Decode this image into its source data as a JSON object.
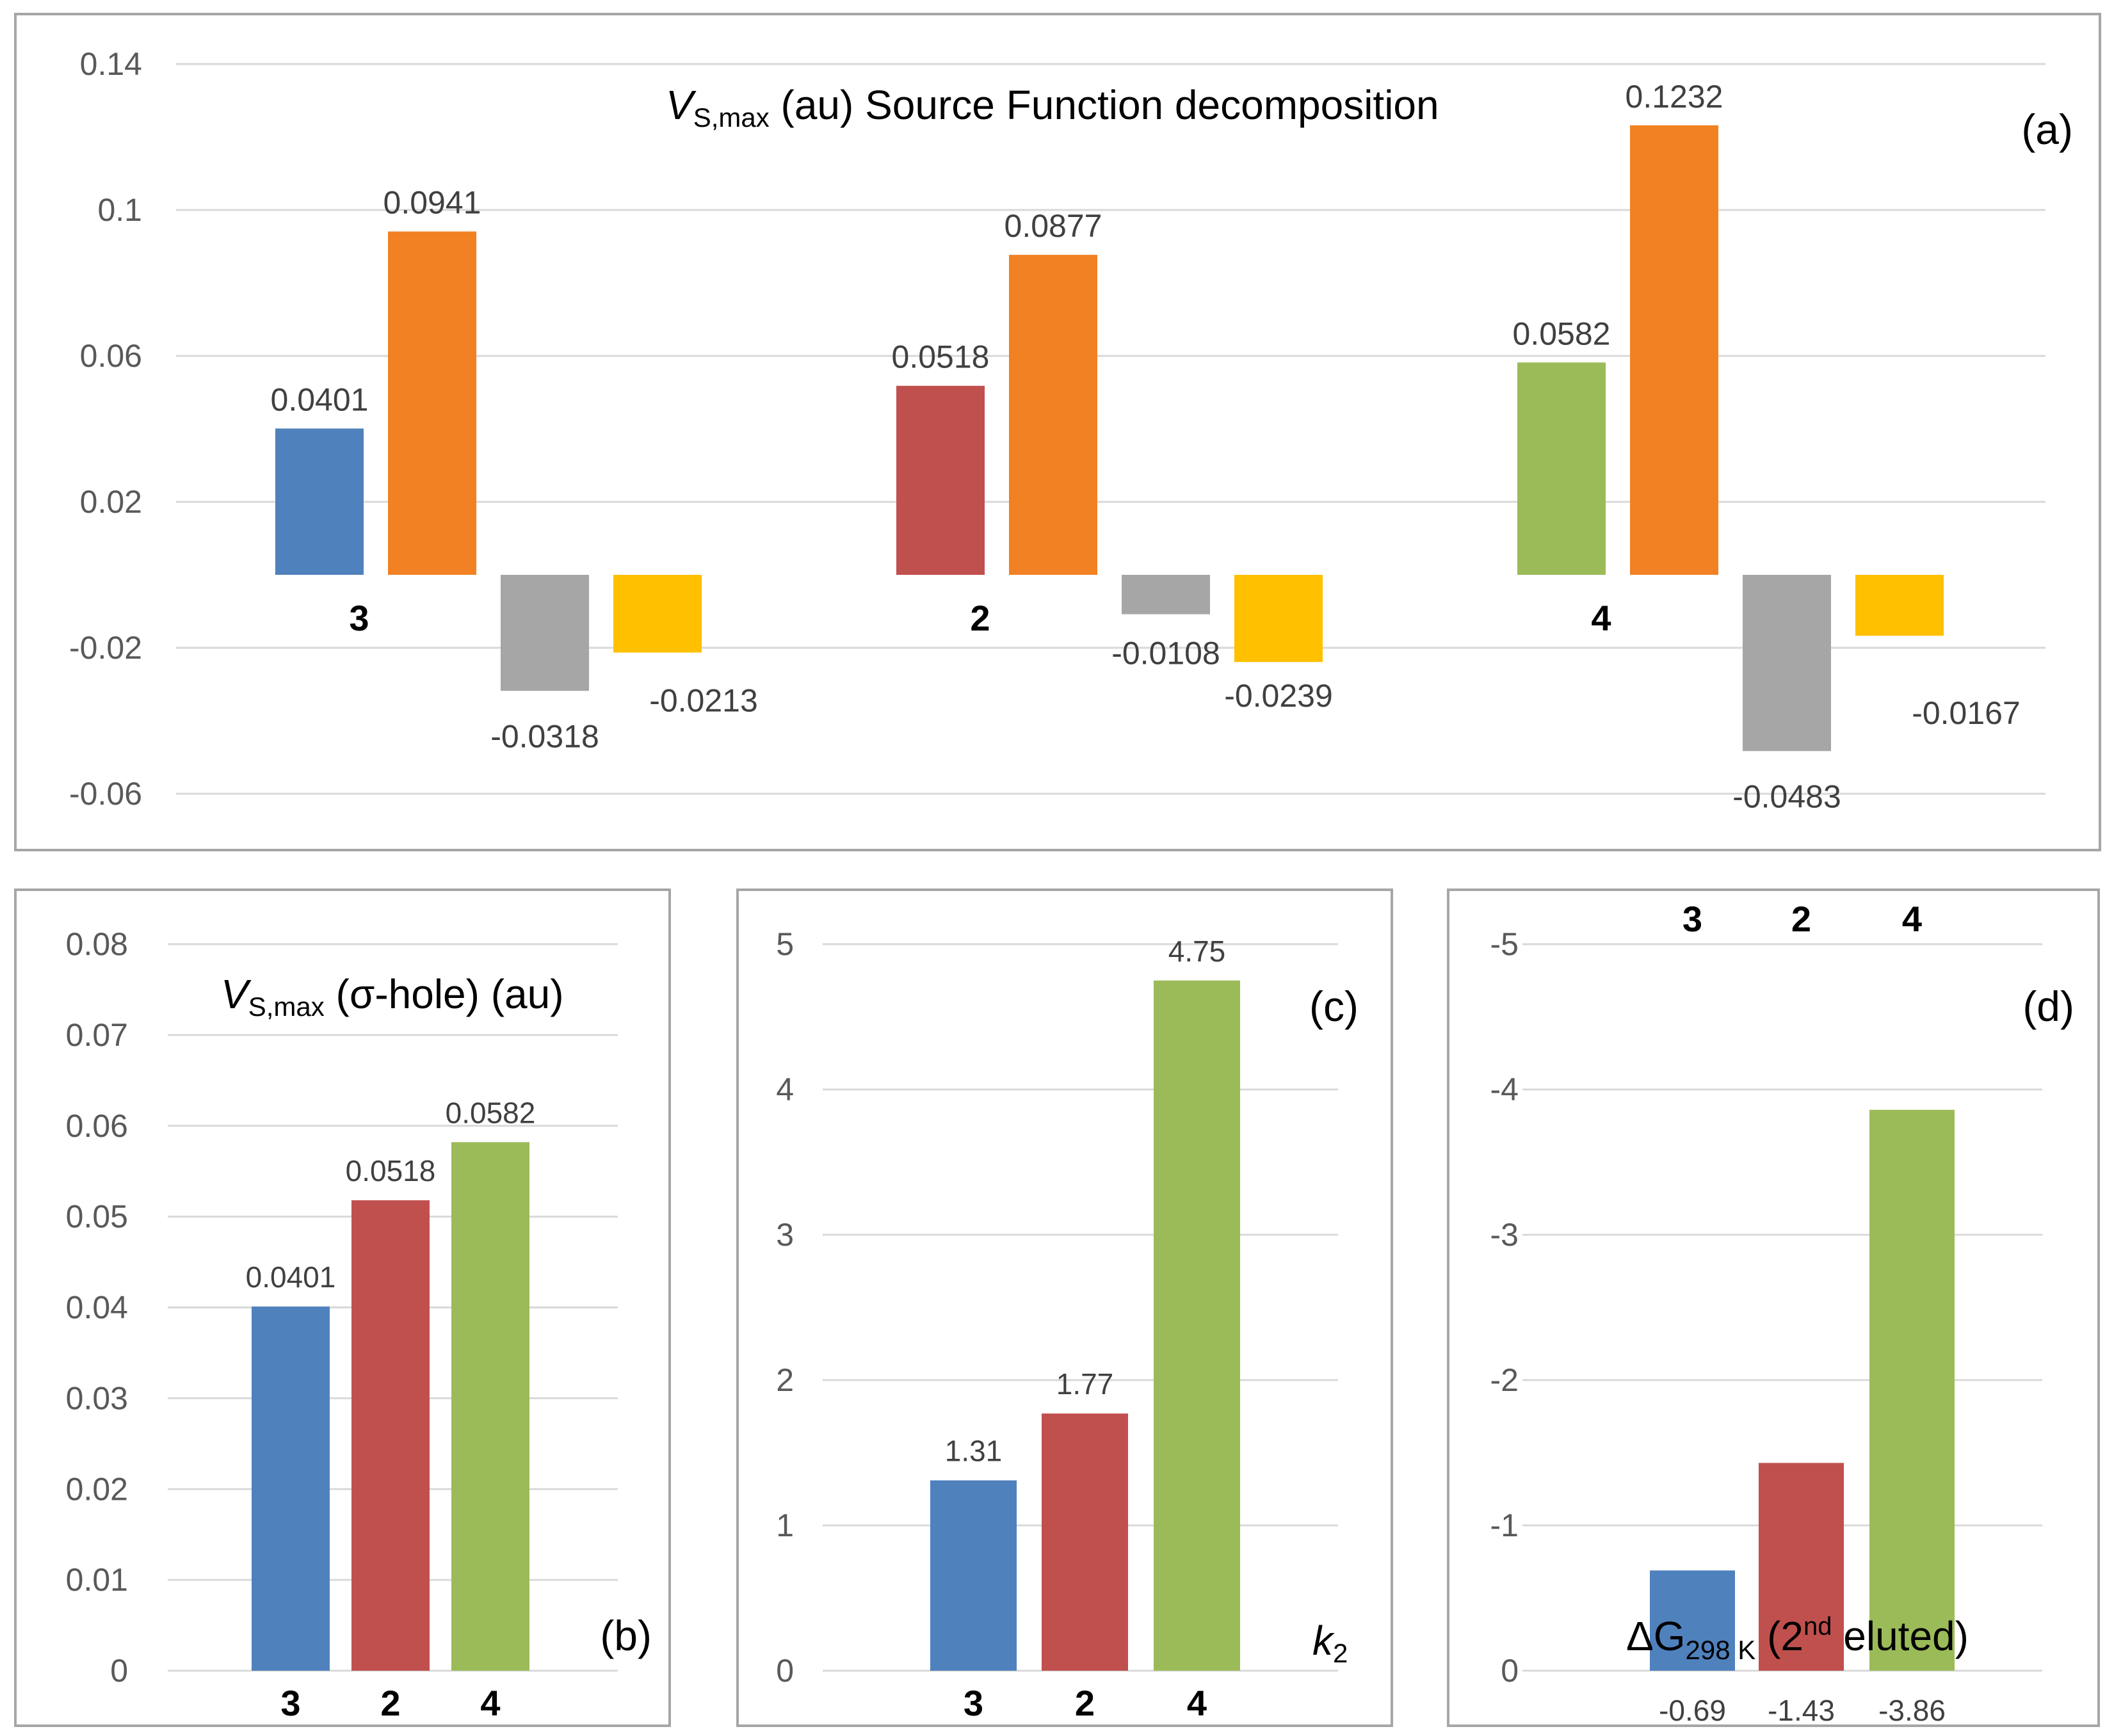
{
  "chart_data": [
    {
      "panel": "(a)",
      "type": "bar",
      "title": {
        "italic": "V",
        "sub": "S,max",
        "rest": " (au) Source Function decomposition"
      },
      "ylim": [
        -0.06,
        0.14
      ],
      "yticks": [
        "0.14",
        "0.1",
        "0.06",
        "0.02",
        "-0.02",
        "-0.06"
      ],
      "ytick_values": [
        0.14,
        0.1,
        0.06,
        0.02,
        -0.02,
        -0.06
      ],
      "grid": true,
      "categories": [
        "3",
        "2",
        "4"
      ],
      "groups": [
        {
          "category": "3",
          "values": [
            0.0401,
            0.0941,
            -0.0318,
            -0.0213
          ],
          "labels": [
            "0.0401",
            "0.0941",
            "-0.0318",
            "-0.0213"
          ],
          "colors": [
            "#4f81bd",
            "#f28123",
            "#a6a6a6",
            "#ffc000"
          ]
        },
        {
          "category": "2",
          "values": [
            0.0518,
            0.0877,
            -0.0108,
            -0.0239
          ],
          "labels": [
            "0.0518",
            "0.0877",
            "-0.0108",
            "-0.0239"
          ],
          "colors": [
            "#c0504d",
            "#f28123",
            "#a6a6a6",
            "#ffc000"
          ]
        },
        {
          "category": "4",
          "values": [
            0.0582,
            0.1232,
            -0.0483,
            -0.0167
          ],
          "labels": [
            "0.0582",
            "0.1232",
            "-0.0483",
            "-0.0167"
          ],
          "colors": [
            "#9bbb59",
            "#f28123",
            "#a6a6a6",
            "#ffc000"
          ]
        }
      ]
    },
    {
      "panel": "(b)",
      "type": "bar",
      "title": {
        "italic": "V",
        "sub": "S,max",
        "rest": " (σ-hole) (au)"
      },
      "ylim": [
        0,
        0.08
      ],
      "yticks": [
        "0.08",
        "0.07",
        "0.06",
        "0.05",
        "0.04",
        "0.03",
        "0.02",
        "0.01",
        "0"
      ],
      "ytick_values": [
        0.08,
        0.07,
        0.06,
        0.05,
        0.04,
        0.03,
        0.02,
        0.01,
        0
      ],
      "grid": true,
      "categories": [
        "3",
        "2",
        "4"
      ],
      "values": [
        0.0401,
        0.0518,
        0.0582
      ],
      "labels": [
        "0.0401",
        "0.0518",
        "0.0582"
      ],
      "colors": [
        "#4f81bd",
        "#c0504d",
        "#9bbb59"
      ]
    },
    {
      "panel": "(c)",
      "type": "bar",
      "ylabel": {
        "italic": "k",
        "sub": "2"
      },
      "ylim": [
        0,
        5
      ],
      "yticks": [
        "5",
        "4",
        "3",
        "2",
        "1",
        "0"
      ],
      "ytick_values": [
        5,
        4,
        3,
        2,
        1,
        0
      ],
      "grid": true,
      "categories": [
        "3",
        "2",
        "4"
      ],
      "values": [
        1.31,
        1.77,
        4.75
      ],
      "labels": [
        "1.31",
        "1.77",
        "4.75"
      ],
      "colors": [
        "#4f81bd",
        "#c0504d",
        "#9bbb59"
      ]
    },
    {
      "panel": "(d)",
      "type": "bar",
      "ylabel": {
        "prefix": "ΔG",
        "sub": "298 K",
        "mid": " (2",
        "sup": "nd",
        "rest": " eluted)"
      },
      "ylim": [
        -5,
        0
      ],
      "yticks": [
        "0",
        "-1",
        "-2",
        "-3",
        "-4",
        "-5"
      ],
      "ytick_values": [
        0,
        -1,
        -2,
        -3,
        -4,
        -5
      ],
      "grid": true,
      "categories": [
        "3",
        "2",
        "4"
      ],
      "values": [
        -0.69,
        -1.43,
        -3.86
      ],
      "labels": [
        "-0.69",
        "-1.43",
        "-3.86"
      ],
      "colors": [
        "#4f81bd",
        "#c0504d",
        "#9bbb59"
      ]
    }
  ]
}
